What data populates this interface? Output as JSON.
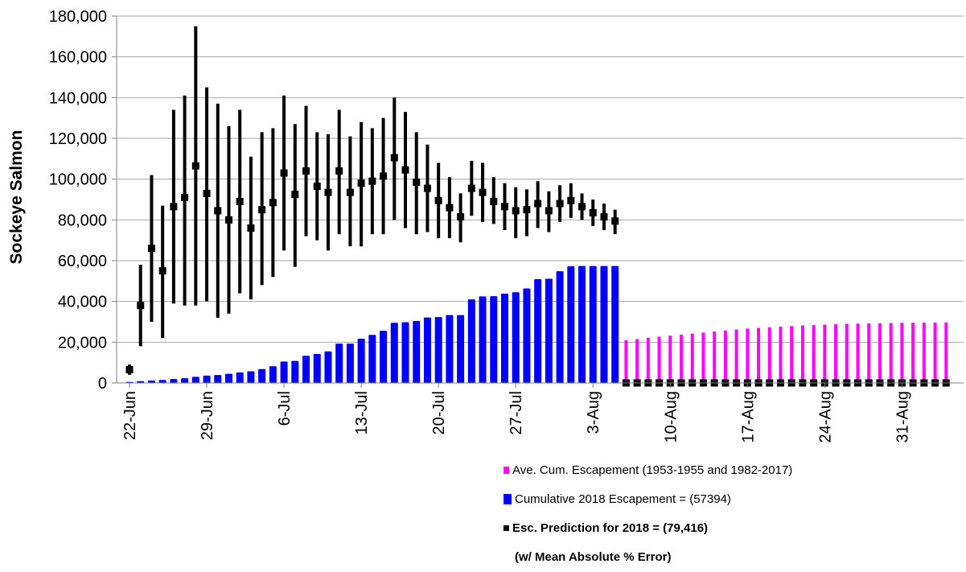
{
  "chart_data": {
    "type": "bar",
    "ylabel": "Sockeye Salmon",
    "ylim": [
      0,
      180000
    ],
    "y_ticks": [
      "0",
      "20,000",
      "40,000",
      "60,000",
      "80,000",
      "100,000",
      "120,000",
      "140,000",
      "160,000",
      "180,000"
    ],
    "x_ticks": [
      "22-Jun",
      "29-Jun",
      "6-Jul",
      "13-Jul",
      "20-Jul",
      "27-Jul",
      "3-Aug",
      "10-Aug",
      "17-Aug",
      "24-Aug",
      "31-Aug"
    ],
    "x_tick_day_index": [
      0,
      7,
      14,
      21,
      28,
      35,
      42,
      49,
      56,
      63,
      70
    ],
    "categories_start": "22-Jun",
    "days": 75,
    "grid": true,
    "colors": {
      "average": "#ff00ff",
      "cumulative": "#0000ff",
      "prediction": "#000000"
    },
    "series": [
      {
        "name": "Ave. Cum. Escapement (1953-1955 and 1982-2017)",
        "type": "bar",
        "values": [
          100,
          200,
          300,
          450,
          600,
          800,
          1000,
          1300,
          1600,
          1900,
          2200,
          2500,
          2800,
          3100,
          3400,
          3700,
          4000,
          4300,
          4600,
          4900,
          5200,
          5500,
          5900,
          6300,
          6700,
          7100,
          7500,
          7900,
          8300,
          9000,
          10000,
          11000,
          12000,
          13000,
          13500,
          14000,
          14500,
          15000,
          16000,
          17000,
          18000,
          18800,
          19500,
          20000,
          20500,
          21000,
          21500,
          22200,
          22700,
          23200,
          23700,
          24200,
          24700,
          25200,
          25700,
          26200,
          26700,
          27000,
          27300,
          27600,
          27900,
          28200,
          28400,
          28600,
          28800,
          29000,
          29100,
          29200,
          29300,
          29400,
          29500,
          29550,
          29600,
          29650,
          29700
        ]
      },
      {
        "name": "Cumulative 2018 Escapement = (57394)",
        "type": "bar",
        "values": [
          500,
          900,
          1200,
          1500,
          1900,
          2300,
          3000,
          3600,
          3900,
          4500,
          5200,
          5700,
          6800,
          8200,
          10500,
          10800,
          13300,
          14200,
          15500,
          19300,
          19300,
          21700,
          23600,
          25600,
          29500,
          29800,
          30400,
          32100,
          32300,
          33300,
          33300,
          41000,
          42500,
          42600,
          43800,
          44500,
          46400,
          50900,
          51100,
          54800,
          57300,
          57394,
          57394,
          57394,
          57394
        ]
      },
      {
        "name": "Esc. Prediction for 2018 = (79,416)",
        "note": "(w/ Mean Absolute % Error)",
        "type": "point-errorbar",
        "values": [
          6500,
          38000,
          66000,
          55000,
          86500,
          91000,
          106500,
          93000,
          84500,
          80000,
          89000,
          76000,
          85000,
          88500,
          103000,
          92500,
          104000,
          96500,
          93500,
          104000,
          93500,
          98000,
          99000,
          101500,
          110500,
          104500,
          98500,
          95500,
          89500,
          86000,
          81500,
          95500,
          93500,
          89000,
          86500,
          84500,
          85000,
          88000,
          84500,
          88000,
          89500,
          86500,
          83500,
          81500,
          79416
        ],
        "upper": [
          9000,
          58000,
          102000,
          87000,
          134000,
          141000,
          175000,
          145000,
          137000,
          126000,
          134000,
          111000,
          123000,
          125000,
          141000,
          127000,
          136000,
          123000,
          122000,
          134000,
          121000,
          128000,
          125000,
          130000,
          140000,
          133000,
          123000,
          117000,
          108000,
          101000,
          93000,
          109000,
          108000,
          101000,
          98000,
          96000,
          95000,
          99000,
          94000,
          97000,
          98000,
          93000,
          90000,
          88000,
          85000
        ],
        "lower": [
          4000,
          18000,
          30000,
          22000,
          39000,
          38000,
          38000,
          40000,
          32000,
          34000,
          44000,
          41000,
          48000,
          52000,
          65000,
          57000,
          72000,
          70000,
          65000,
          73000,
          67000,
          67000,
          73000,
          73000,
          80000,
          76000,
          73000,
          74000,
          71000,
          71000,
          69000,
          82000,
          79000,
          78000,
          75000,
          71000,
          72000,
          76000,
          74000,
          79000,
          81000,
          80000,
          77000,
          75000,
          73000
        ],
        "zero_from_day": 45
      }
    ]
  },
  "legend": {
    "average_label": "Ave. Cum. Escapement (1953-1955 and 1982-2017)",
    "cumulative_label": "Cumulative 2018 Escapement = (57394)",
    "prediction_label": "Esc. Prediction for 2018 = (79,416)",
    "prediction_note": "(w/ Mean Absolute % Error)"
  }
}
